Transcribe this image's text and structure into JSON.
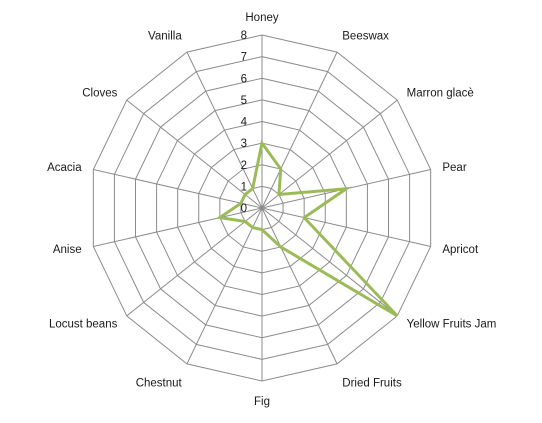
{
  "chart_data": {
    "type": "radar",
    "title": "",
    "categories": [
      "Honey",
      "Beeswax",
      "Marron glacè",
      "Pear",
      "Apricot",
      "Yellow Fruits Jam",
      "Dried Fruits",
      "Fig",
      "Chestnut",
      "Locust beans",
      "Anise",
      "Acacia",
      "Cloves",
      "Vanilla"
    ],
    "rlim": [
      0,
      8
    ],
    "ticks": [
      "0",
      "1",
      "2",
      "3",
      "4",
      "5",
      "6",
      "7",
      "8"
    ],
    "grid": true,
    "legend": "none",
    "series": [
      {
        "values": [
          3,
          2,
          1,
          4,
          2,
          8,
          2,
          1,
          1,
          1,
          2,
          1,
          1,
          1
        ],
        "color": "#9bbb59"
      }
    ]
  }
}
